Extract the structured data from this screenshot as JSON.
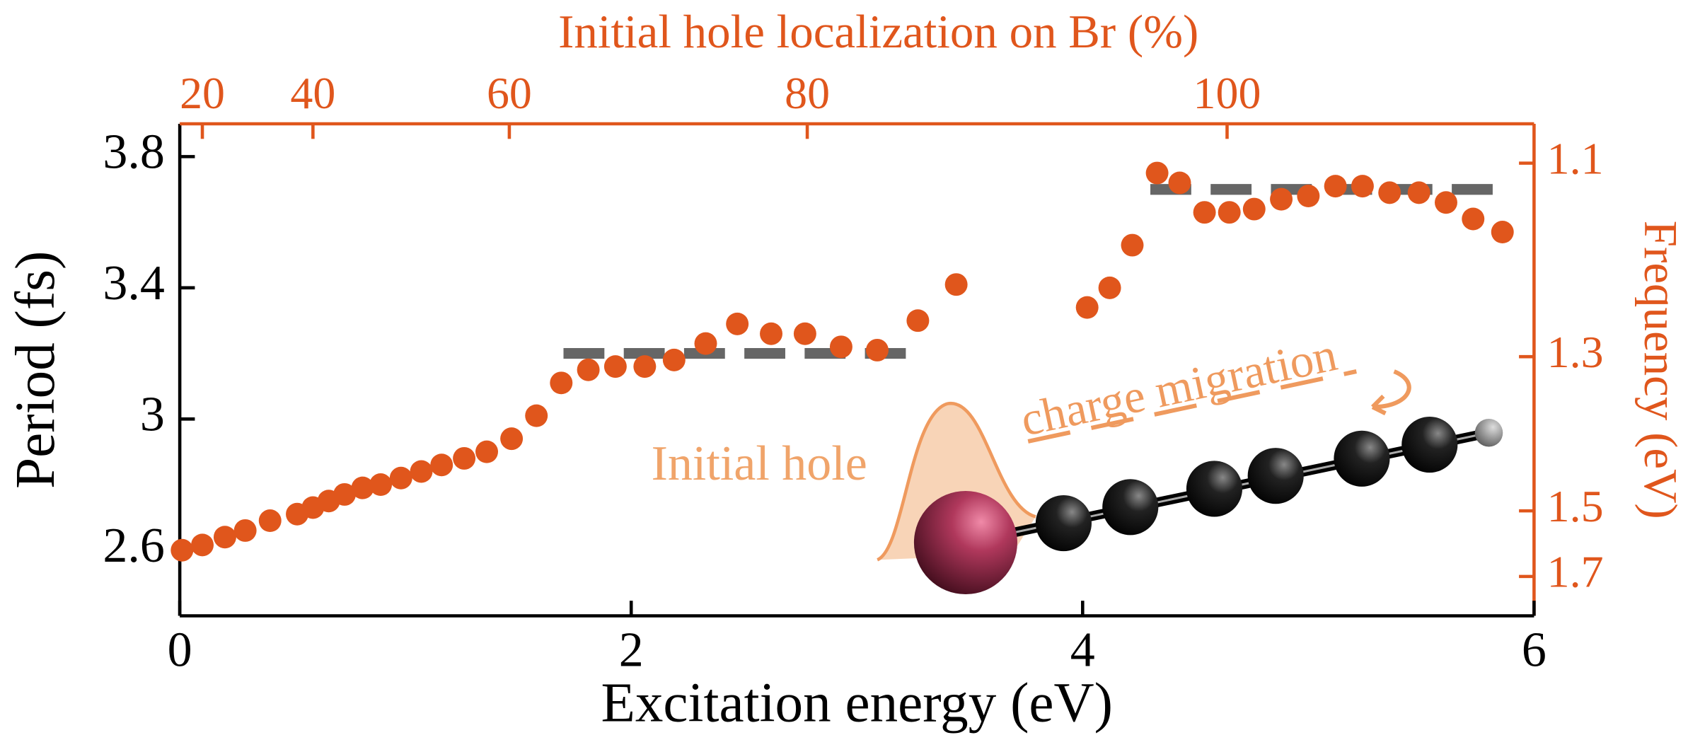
{
  "chart_data": {
    "type": "scatter",
    "xlabel": "Excitation energy (eV)",
    "ylabel": "Period (fs)",
    "x2label": "Initial hole localization on Br (%)",
    "y2label": "Frequency (eV)",
    "color": "#e0561c",
    "x": [
      0.01,
      0.1,
      0.2,
      0.29,
      0.4,
      0.52,
      0.59,
      0.66,
      0.73,
      0.81,
      0.89,
      0.98,
      1.07,
      1.16,
      1.26,
      1.36,
      1.47,
      1.58,
      1.69,
      1.81,
      1.93,
      2.06,
      2.19,
      2.33,
      2.47,
      2.62,
      2.77,
      2.93,
      3.09,
      3.27,
      3.44,
      4.02,
      4.12,
      4.22,
      4.33,
      4.43,
      4.54,
      4.65,
      4.76,
      4.88,
      5.0,
      5.12,
      5.24,
      5.36,
      5.49,
      5.61,
      5.73,
      5.86
    ],
    "values": [
      2.6,
      2.616,
      2.64,
      2.66,
      2.69,
      2.71,
      2.73,
      2.75,
      2.77,
      2.79,
      2.8,
      2.82,
      2.84,
      2.86,
      2.88,
      2.9,
      2.94,
      3.01,
      3.11,
      3.15,
      3.16,
      3.16,
      3.18,
      3.23,
      3.29,
      3.26,
      3.26,
      3.22,
      3.21,
      3.3,
      3.41,
      3.34,
      3.4,
      3.53,
      3.75,
      3.72,
      3.63,
      3.63,
      3.64,
      3.67,
      3.68,
      3.71,
      3.71,
      3.69,
      3.69,
      3.66,
      3.61,
      3.57
    ],
    "dashed_lines": [
      {
        "y": 3.2,
        "x": [
          1.7,
          3.3
        ]
      },
      {
        "y": 3.7,
        "x": [
          4.3,
          5.9
        ]
      }
    ],
    "xlim": [
      0,
      6
    ],
    "xticks": [
      0,
      2,
      4,
      6
    ],
    "ylim": [
      2.4,
      3.9
    ],
    "yticks": [
      2.6,
      3,
      3.4,
      3.8
    ],
    "x2ticks": [
      20,
      40,
      60,
      80,
      100
    ],
    "x2tick_positions": [
      0.1,
      0.59,
      1.46,
      2.78,
      4.64
    ],
    "y2ticks": [
      1.1,
      1.3,
      1.5,
      1.7
    ],
    "y2tick_positions": [
      3.78,
      3.19,
      2.72,
      2.52
    ],
    "annotations": [
      "Initial hole",
      "charge migration"
    ]
  }
}
